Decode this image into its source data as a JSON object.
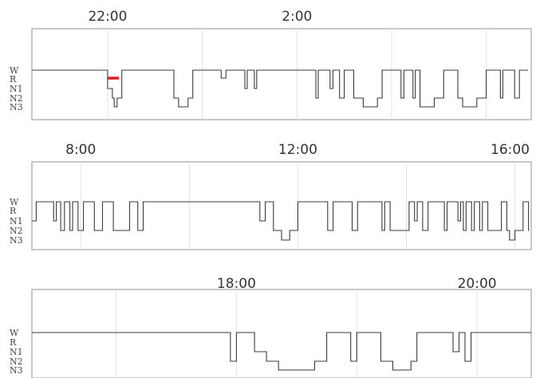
{
  "colors": {
    "trace": "#3a3a3a",
    "rem_marker": "#e02020",
    "frame": "#b0b0b0",
    "grid": "#e3e3e3",
    "text": "#333333"
  },
  "chart_data": [
    {
      "type": "line",
      "title": "",
      "xlabel": "",
      "ylabel": "",
      "stages": [
        "W",
        "R",
        "N1",
        "N2",
        "N3"
      ],
      "stage_axis": "categorical, W at top, N3 at bottom",
      "xlim": [
        20.4,
        6.95
      ],
      "xlim_note": "hours of day, window wraps past midnight (20.4 to 30.95)",
      "ticks": [
        {
          "x": 22,
          "label": "22:00"
        },
        {
          "x": 26,
          "label": "2:00"
        }
      ],
      "grid_x": [
        22,
        24,
        26,
        28,
        30
      ],
      "grid": true,
      "rem_segment": {
        "stage": "R",
        "x_start": 22.0,
        "x_end": 22.24
      },
      "epochs": [
        [
          20.4,
          "W"
        ],
        [
          22.0,
          "N1"
        ],
        [
          22.1,
          "N2"
        ],
        [
          22.14,
          "N3"
        ],
        [
          22.2,
          "N2"
        ],
        [
          22.3,
          "W"
        ],
        [
          23.4,
          "N2"
        ],
        [
          23.5,
          "N3"
        ],
        [
          23.7,
          "N2"
        ],
        [
          23.8,
          "W"
        ],
        [
          24.4,
          "R"
        ],
        [
          24.5,
          "W"
        ],
        [
          24.9,
          "N1"
        ],
        [
          24.95,
          "W"
        ],
        [
          25.1,
          "N1"
        ],
        [
          25.15,
          "W"
        ],
        [
          26.4,
          "N2"
        ],
        [
          26.45,
          "W"
        ],
        [
          26.7,
          "N1"
        ],
        [
          26.76,
          "W"
        ],
        [
          26.9,
          "N2"
        ],
        [
          27.0,
          "W"
        ],
        [
          27.2,
          "N2"
        ],
        [
          27.4,
          "N3"
        ],
        [
          27.7,
          "N2"
        ],
        [
          27.8,
          "W"
        ],
        [
          28.2,
          "N2"
        ],
        [
          28.26,
          "W"
        ],
        [
          28.45,
          "N2"
        ],
        [
          28.5,
          "W"
        ],
        [
          28.6,
          "N3"
        ],
        [
          28.9,
          "N2"
        ],
        [
          29.1,
          "W"
        ],
        [
          29.4,
          "N2"
        ],
        [
          29.5,
          "N3"
        ],
        [
          29.8,
          "N2"
        ],
        [
          30.0,
          "W"
        ],
        [
          30.3,
          "N2"
        ],
        [
          30.35,
          "W"
        ],
        [
          30.6,
          "N2"
        ],
        [
          30.7,
          "W"
        ]
      ]
    },
    {
      "type": "line",
      "title": "",
      "xlabel": "",
      "ylabel": "",
      "stages": [
        "W",
        "R",
        "N1",
        "N2",
        "N3"
      ],
      "stage_axis": "categorical, W at top, N3 at bottom",
      "xlim": [
        7.1,
        16.3
      ],
      "ticks": [
        {
          "x": 8,
          "label": "8:00"
        },
        {
          "x": 12,
          "label": "12:00"
        },
        {
          "x": 16,
          "label": "16:00"
        }
      ],
      "grid_x": [
        8,
        10,
        12,
        14,
        16
      ],
      "grid": true,
      "epochs": [
        [
          7.1,
          "N1"
        ],
        [
          7.18,
          "W"
        ],
        [
          7.5,
          "N1"
        ],
        [
          7.55,
          "W"
        ],
        [
          7.63,
          "N2"
        ],
        [
          7.7,
          "W"
        ],
        [
          7.8,
          "N2"
        ],
        [
          7.85,
          "W"
        ],
        [
          7.95,
          "N2"
        ],
        [
          8.05,
          "W"
        ],
        [
          8.25,
          "N2"
        ],
        [
          8.4,
          "W"
        ],
        [
          8.6,
          "N2"
        ],
        [
          8.9,
          "W"
        ],
        [
          9.05,
          "N2"
        ],
        [
          9.15,
          "W"
        ],
        [
          11.3,
          "N1"
        ],
        [
          11.4,
          "W"
        ],
        [
          11.55,
          "N2"
        ],
        [
          11.7,
          "N3"
        ],
        [
          11.85,
          "N2"
        ],
        [
          12.0,
          "W"
        ],
        [
          12.55,
          "N2"
        ],
        [
          12.65,
          "W"
        ],
        [
          13.0,
          "N2"
        ],
        [
          13.1,
          "W"
        ],
        [
          13.55,
          "N2"
        ],
        [
          13.6,
          "W"
        ],
        [
          13.7,
          "N2"
        ],
        [
          14.05,
          "W"
        ],
        [
          14.15,
          "N1"
        ],
        [
          14.2,
          "W"
        ],
        [
          14.3,
          "N2"
        ],
        [
          14.4,
          "W"
        ],
        [
          14.7,
          "N2"
        ],
        [
          14.75,
          "W"
        ],
        [
          14.95,
          "N1"
        ],
        [
          15.0,
          "W"
        ],
        [
          15.05,
          "N2"
        ],
        [
          15.1,
          "W"
        ],
        [
          15.2,
          "N2"
        ],
        [
          15.25,
          "W"
        ],
        [
          15.35,
          "N2"
        ],
        [
          15.4,
          "W"
        ],
        [
          15.5,
          "N2"
        ],
        [
          15.75,
          "W"
        ],
        [
          15.85,
          "N2"
        ],
        [
          15.9,
          "N3"
        ],
        [
          16.0,
          "N2"
        ],
        [
          16.15,
          "W"
        ],
        [
          16.25,
          "N2"
        ]
      ]
    },
    {
      "type": "line",
      "title": "",
      "xlabel": "",
      "ylabel": "",
      "stages": [
        "W",
        "R",
        "N1",
        "N2",
        "N3"
      ],
      "stage_axis": "categorical, W at top, N3 at bottom",
      "xlim": [
        16.3,
        20.45
      ],
      "ticks": [
        {
          "x": 18,
          "label": "18:00"
        },
        {
          "x": 20,
          "label": "20:00"
        }
      ],
      "grid_x": [
        17,
        18,
        19,
        20
      ],
      "grid": true,
      "epochs": [
        [
          16.3,
          "W"
        ],
        [
          17.95,
          "N2"
        ],
        [
          18.0,
          "W"
        ],
        [
          18.15,
          "N1"
        ],
        [
          18.25,
          "N2"
        ],
        [
          18.35,
          "N3"
        ],
        [
          18.65,
          "N2"
        ],
        [
          18.75,
          "W"
        ],
        [
          18.95,
          "N2"
        ],
        [
          19.0,
          "W"
        ],
        [
          19.2,
          "N2"
        ],
        [
          19.3,
          "N3"
        ],
        [
          19.45,
          "N2"
        ],
        [
          19.5,
          "W"
        ],
        [
          19.8,
          "N1"
        ],
        [
          19.85,
          "W"
        ],
        [
          19.9,
          "N2"
        ],
        [
          19.95,
          "W"
        ],
        [
          20.45,
          "W"
        ]
      ]
    }
  ]
}
